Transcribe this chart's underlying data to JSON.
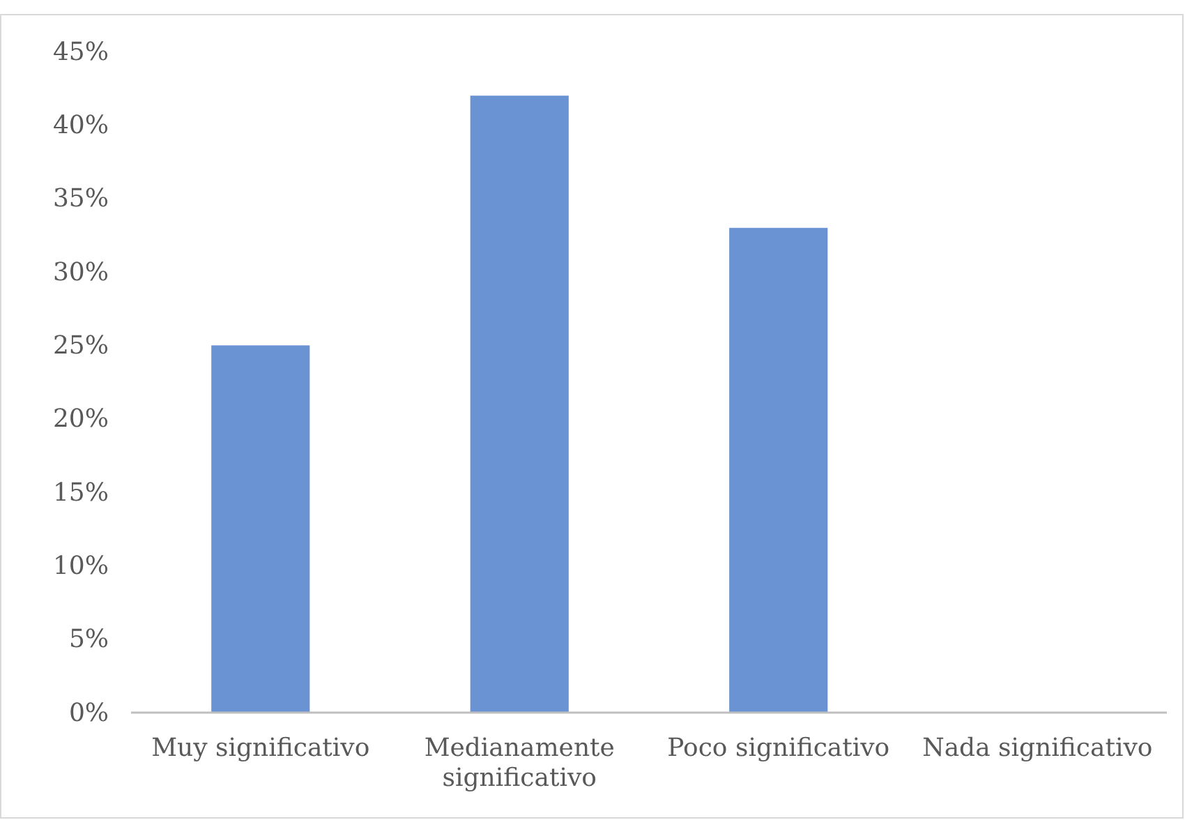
{
  "chart_data": {
    "type": "bar",
    "categories": [
      "Muy significativo",
      "Medianamente significativo",
      "Poco significativo",
      "Nada significativo"
    ],
    "values": [
      25,
      42,
      33,
      0
    ],
    "color": "#6a93d4",
    "ylim": [
      0,
      45
    ],
    "yticks": [
      {
        "value": 0,
        "label": "0%"
      },
      {
        "value": 5,
        "label": "5%"
      },
      {
        "value": 10,
        "label": "10%"
      },
      {
        "value": 15,
        "label": "15%"
      },
      {
        "value": 20,
        "label": "20%"
      },
      {
        "value": 25,
        "label": "25%"
      },
      {
        "value": 30,
        "label": "30%"
      },
      {
        "value": 35,
        "label": "35%"
      },
      {
        "value": 40,
        "label": "40%"
      },
      {
        "value": 45,
        "label": "45%"
      }
    ],
    "grid": false
  }
}
